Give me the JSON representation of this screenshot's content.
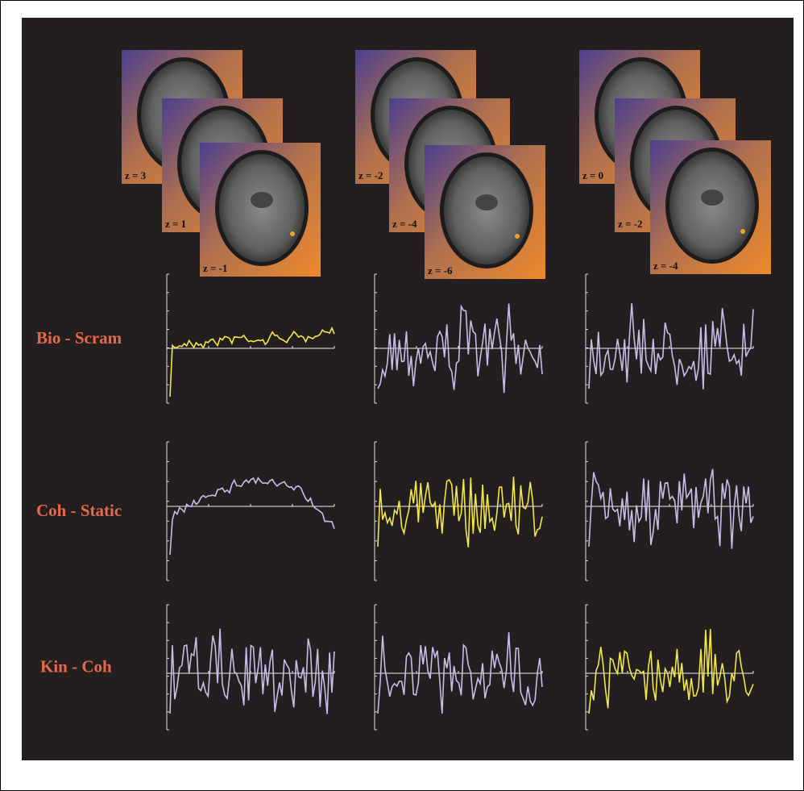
{
  "stacks": [
    {
      "slices": [
        "z = 3",
        "z = 1",
        "z = -1"
      ]
    },
    {
      "slices": [
        "z = -2",
        "z = -4",
        "z = -6"
      ]
    },
    {
      "slices": [
        "z = 0",
        "z = -2",
        "z = -4"
      ]
    }
  ],
  "rows": [
    {
      "label": "Bio - Scram",
      "panels": [
        {
          "color": "#f2e64a"
        },
        {
          "color": "#c9bde6"
        },
        {
          "color": "#c9bde6"
        }
      ]
    },
    {
      "label": "Coh - Static",
      "panels": [
        {
          "color": "#c9bde6"
        },
        {
          "color": "#f2e64a"
        },
        {
          "color": "#c9bde6"
        }
      ]
    },
    {
      "label": "Kin - Coh",
      "panels": [
        {
          "color": "#c9bde6"
        },
        {
          "color": "#c9bde6"
        },
        {
          "color": "#f2e64a"
        }
      ]
    }
  ]
}
